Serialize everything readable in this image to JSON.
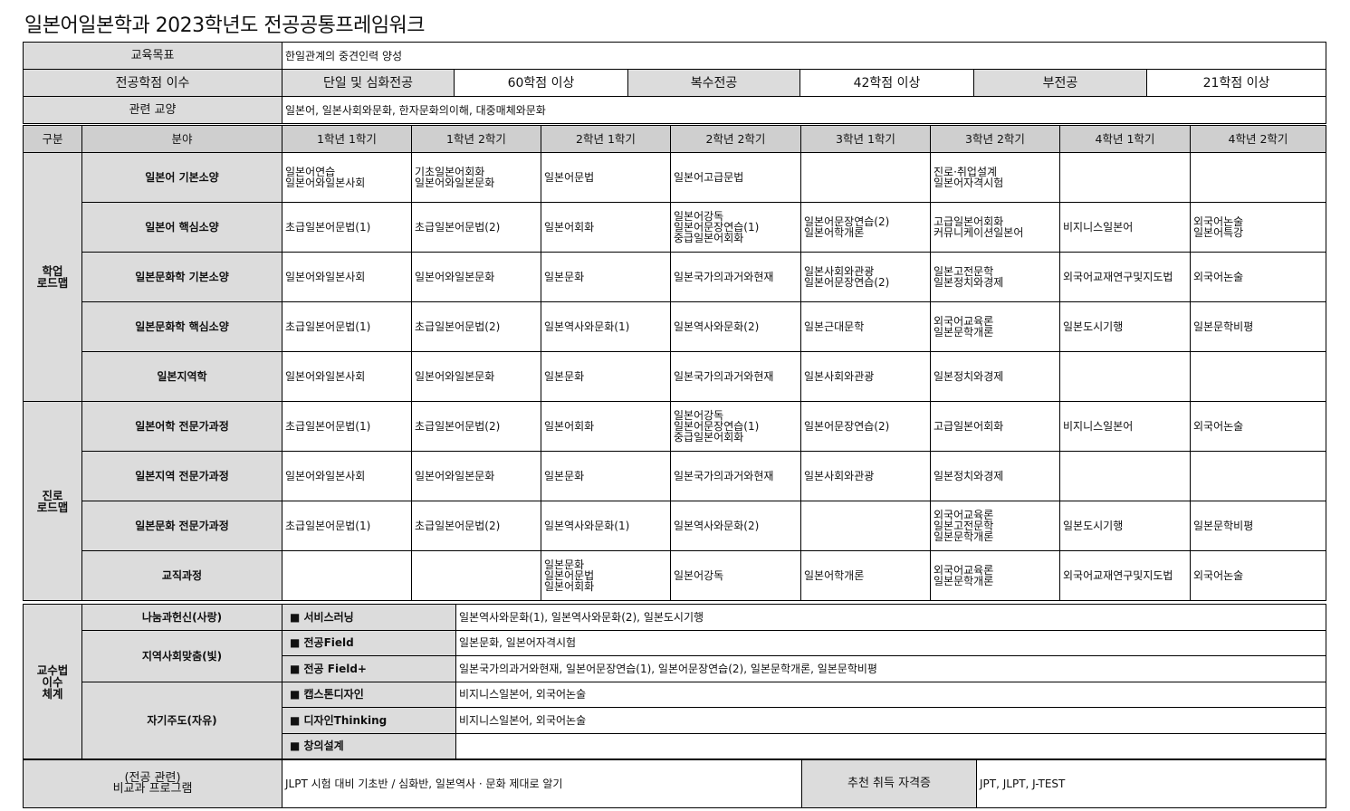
{
  "title": "일본어일본학과 2023학년도 전공공통프레임워크",
  "goal": {
    "label": "교육목표",
    "value": "한일관계의 중견인력 양성"
  },
  "credits": {
    "label": "전공학점 이수",
    "items": [
      {
        "type": "단일 및 심화전공",
        "value": "60학점 이상"
      },
      {
        "type": "복수전공",
        "value": "42학점 이상"
      },
      {
        "type": "부전공",
        "value": "21학점 이상"
      }
    ]
  },
  "liberal": {
    "label": "관련 교양",
    "value": "일본어, 일본사회와문화, 한자문화의이해, 대중매체와문화"
  },
  "roadmap": {
    "headers": [
      "구분",
      "분야",
      "1학년 1학기",
      "1학년 2학기",
      "2학년 1학기",
      "2학년 2학기",
      "3학년 1학기",
      "3학년 2학기",
      "4학년 1학기",
      "4학년 2학기"
    ],
    "groups": [
      {
        "label": "학업\n로드맵",
        "rows": [
          {
            "field": "일본어 기본소양",
            "cells": [
              "일본어연습\n일본어와일본사회",
              "기초일본어회화\n일본어와일본문화",
              "일본어문법",
              "일본어고급문법",
              "",
              "진로·취업설계\n일본어자격시험",
              "",
              ""
            ]
          },
          {
            "field": "일본어 핵심소양",
            "cells": [
              "초급일본어문법(1)",
              "초급일본어문법(2)",
              "일본어회화",
              "일본어강독\n일본어문장연습(1)\n중급일본어회화",
              "일본어문장연습(2)\n일본어학개론",
              "고급일본어회화\n커뮤니케이션일본어",
              "비지니스일본어",
              "외국어논술\n일본어특강"
            ]
          },
          {
            "field": "일본문화학 기본소양",
            "cells": [
              "일본어와일본사회",
              "일본어와일본문화",
              "일본문화",
              "일본국가의과거와현재",
              "일본사회와관광\n일본어문장연습(2)",
              "일본고전문학\n일본정치와경제",
              "외국어교재연구및지도법",
              "외국어논술"
            ]
          },
          {
            "field": "일본문화학 핵심소양",
            "cells": [
              "초급일본어문법(1)",
              "초급일본어문법(2)",
              "일본역사와문화(1)",
              "일본역사와문화(2)",
              "일본근대문학",
              "외국어교육론\n일본문학개론",
              "일본도시기행",
              "일본문학비평"
            ]
          },
          {
            "field": "일본지역학",
            "cells": [
              "일본어와일본사회",
              "일본어와일본문화",
              "일본문화",
              "일본국가의과거와현재",
              "일본사회와관광",
              "일본정치와경제",
              "",
              ""
            ]
          }
        ]
      },
      {
        "label": "진로\n로드맵",
        "rows": [
          {
            "field": "일본어학 전문가과정",
            "cells": [
              "초급일본어문법(1)",
              "초급일본어문법(2)",
              "일본어회화",
              "일본어강독\n일본어문장연습(1)\n중급일본어회화",
              "일본어문장연습(2)",
              "고급일본어회화",
              "비지니스일본어",
              "외국어논술"
            ]
          },
          {
            "field": "일본지역 전문가과정",
            "cells": [
              "일본어와일본사회",
              "일본어와일본문화",
              "일본문화",
              "일본국가의과거와현재",
              "일본사회와관광",
              "일본정치와경제",
              "",
              ""
            ]
          },
          {
            "field": "일본문화 전문가과정",
            "cells": [
              "초급일본어문법(1)",
              "초급일본어문법(2)",
              "일본역사와문화(1)",
              "일본역사와문화(2)",
              "",
              "외국어교육론\n일본고전문학\n일본문학개론",
              "일본도시기행",
              "일본문학비평"
            ]
          },
          {
            "field": "교직과정",
            "cells": [
              "",
              "",
              "일본문화\n일본어문법\n일본어회화",
              "일본어강독",
              "일본어학개론",
              "외국어교육론\n일본문학개론",
              "외국어교재연구및지도법",
              "외국어논술"
            ]
          }
        ]
      }
    ]
  },
  "teaching": {
    "label": "교수법\n이수\n체계",
    "categories": [
      {
        "name": "나눔과헌신(사랑)",
        "items": [
          {
            "method": "■ 서비스러닝",
            "courses": "일본역사와문화(1), 일본역사와문화(2), 일본도시기행"
          }
        ]
      },
      {
        "name": "지역사회맞춤(빛)",
        "items": [
          {
            "method": "■ 전공Field",
            "courses": "일본문화, 일본어자격시험"
          },
          {
            "method": "■ 전공 Field+",
            "courses": "일본국가의과거와현재, 일본어문장연습(1), 일본어문장연습(2), 일본문학개론, 일본문학비평"
          }
        ]
      },
      {
        "name": "자기주도(자유)",
        "items": [
          {
            "method": "■ 캡스톤디자인",
            "courses": "비지니스일본어, 외국어논술"
          },
          {
            "method": "■ 디자인Thinking",
            "courses": "비지니스일본어, 외국어논술"
          },
          {
            "method": "■ 창의설계",
            "courses": ""
          }
        ]
      }
    ]
  },
  "extra": {
    "label": "(전공 관련)\n비교과 프로그램",
    "value": "JLPT 시험 대비 기초반 / 심화반, 일본역사 · 문화 제대로 알기",
    "cert_label": "추천 취득 자격증",
    "cert_value": "JPT, JLPT, J-TEST"
  },
  "colors": {
    "label_bg": "#dcdcdc",
    "header_bg": "#cfcfcf",
    "border": "#000000"
  }
}
